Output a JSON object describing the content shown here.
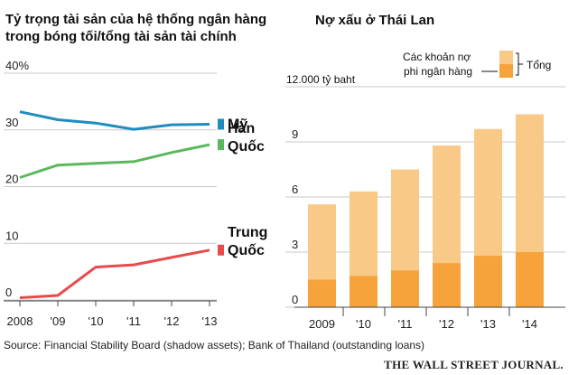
{
  "figure": {
    "source": "Source: Financial Stability Board (shadow assets); Bank of Thailand (outstanding loans)",
    "credit": "THE WALL STREET JOURNAL."
  },
  "chart_data": [
    {
      "type": "line",
      "title": "Tỷ trọng tài sản của hệ thống ngân hàng trong bóng tối/tổng tài sản tài chính",
      "x": [
        2008,
        2009,
        2010,
        2011,
        2012,
        2013
      ],
      "x_tick_labels": [
        "2008",
        "'09",
        "'10",
        "'11",
        "'12",
        "'13"
      ],
      "y_ticks": [
        0,
        10,
        20,
        30,
        40
      ],
      "y_tick_labels": [
        "0",
        "10",
        "20",
        "30",
        "40%"
      ],
      "ylim": [
        0,
        40
      ],
      "grid": true,
      "series": [
        {
          "name": "Mỹ",
          "label_lines": [
            "Mỹ"
          ],
          "color": "#1f8dbe",
          "values": [
            33.2,
            31.8,
            31.2,
            30.1,
            30.9,
            31.0
          ]
        },
        {
          "name": "Hàn Quốc",
          "label_lines": [
            "Hàn",
            "Quốc"
          ],
          "color": "#5cb85c",
          "values": [
            21.6,
            23.8,
            24.1,
            24.4,
            26.0,
            27.4
          ]
        },
        {
          "name": "Trung Quốc",
          "label_lines": [
            "Trung",
            "Quốc"
          ],
          "color": "#e84b4b",
          "values": [
            0.4,
            0.8,
            5.8,
            6.2,
            7.5,
            8.8
          ]
        }
      ]
    },
    {
      "type": "bar",
      "stacked": true,
      "title": "Nợ xấu ở Thái Lan",
      "unit_label": "12.000 tỷ baht",
      "categories": [
        "2009",
        "'10",
        "'11",
        "'12",
        "'13",
        "'14"
      ],
      "y_ticks": [
        0,
        3,
        6,
        9
      ],
      "y_tick_labels": [
        "0",
        "3",
        "6",
        "9"
      ],
      "ylim": [
        0,
        12
      ],
      "grid": true,
      "legend": {
        "placement": "top-right",
        "part_label": "Các khoản nợ phi ngân hàng",
        "part_lines": [
          "Các khoản nợ",
          "phi ngân hàng"
        ],
        "total_label": "Tổng"
      },
      "series": [
        {
          "name": "Các khoản nợ phi ngân hàng",
          "color": "#f5a33a",
          "values": [
            1.5,
            1.7,
            2.0,
            2.4,
            2.8,
            3.0
          ]
        },
        {
          "name": "Tổng",
          "color": "#f9c987",
          "values": [
            5.6,
            6.3,
            7.5,
            8.8,
            9.7,
            10.5
          ]
        }
      ]
    }
  ]
}
